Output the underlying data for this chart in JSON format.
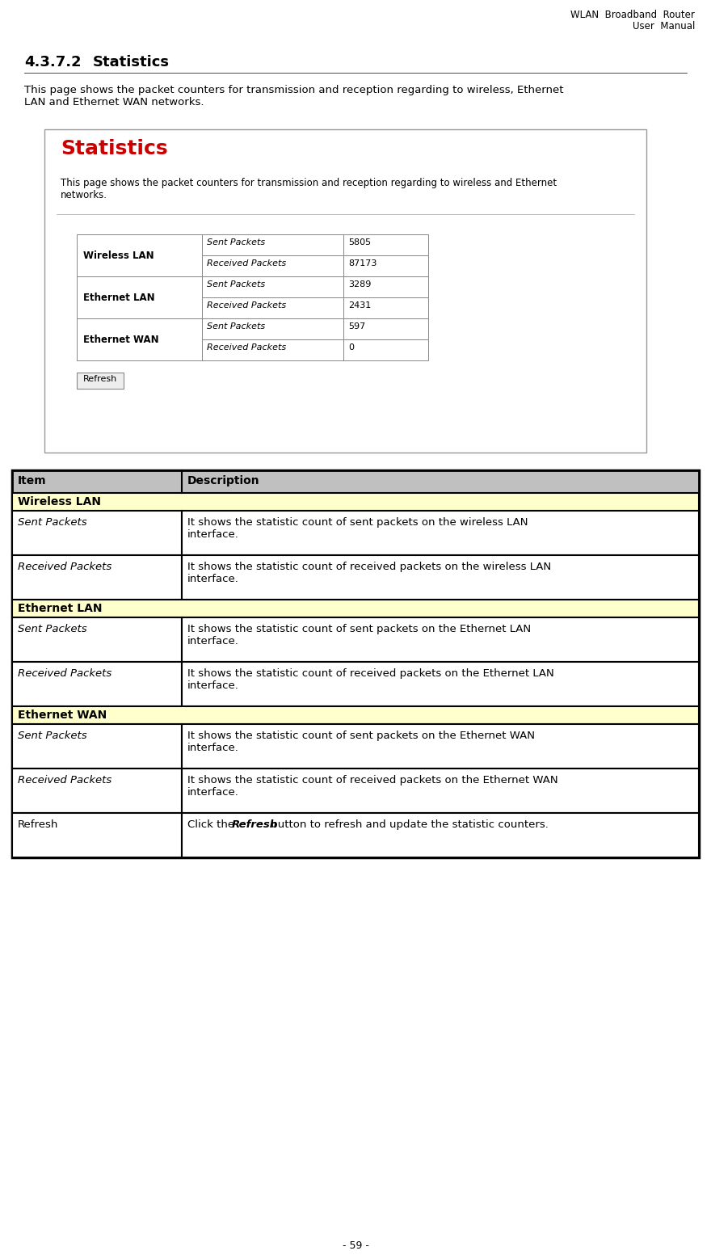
{
  "page_title_right": "WLAN  Broadband  Router\n             User  Manual",
  "section_number": "4.3.7.2",
  "section_title": "Statistics",
  "intro_text": "This page shows the packet counters for transmission and reception regarding to wireless, Ethernet\nLAN and Ethernet WAN networks.",
  "screenshot_title": "Statistics",
  "screenshot_title_color": "#cc0000",
  "screenshot_desc": "This page shows the packet counters for transmission and reception regarding to wireless and Ethernet\nnetworks.",
  "screenshot_table": [
    {
      "group": "Wireless LAN",
      "item": "Sent Packets",
      "value": "5805"
    },
    {
      "group": "",
      "item": "Received Packets",
      "value": "87173"
    },
    {
      "group": "Ethernet LAN",
      "item": "Sent Packets",
      "value": "3289"
    },
    {
      "group": "",
      "item": "Received Packets",
      "value": "2431"
    },
    {
      "group": "Ethernet WAN",
      "item": "Sent Packets",
      "value": "597"
    },
    {
      "group": "",
      "item": "Received Packets",
      "value": "0"
    }
  ],
  "ref_table_header": [
    "Item",
    "Description"
  ],
  "ref_table_header_bg": "#c0c0c0",
  "section_rows": [
    {
      "type": "section",
      "label": "Wireless LAN",
      "bg": "#ffffcc"
    },
    {
      "type": "data",
      "item": "Sent Packets",
      "desc": "It shows the statistic count of sent packets on the wireless LAN\ninterface."
    },
    {
      "type": "data",
      "item": "Received Packets",
      "desc": "It shows the statistic count of received packets on the wireless LAN\ninterface."
    },
    {
      "type": "section",
      "label": "Ethernet LAN",
      "bg": "#ffffcc"
    },
    {
      "type": "data",
      "item": "Sent Packets",
      "desc": "It shows the statistic count of sent packets on the Ethernet LAN\ninterface."
    },
    {
      "type": "data",
      "item": "Received Packets",
      "desc": "It shows the statistic count of received packets on the Ethernet LAN\ninterface."
    },
    {
      "type": "section",
      "label": "Ethernet WAN",
      "bg": "#ffffcc"
    },
    {
      "type": "data",
      "item": "Sent Packets",
      "desc": "It shows the statistic count of sent packets on the Ethernet WAN\ninterface."
    },
    {
      "type": "data",
      "item": "Received Packets",
      "desc": "It shows the statistic count of received packets on the Ethernet WAN\ninterface."
    },
    {
      "type": "data_refresh",
      "item": "Refresh",
      "desc_pre": "Click the ",
      "desc_bold": "Refresh",
      "desc_post": " button to refresh and update the statistic counters."
    }
  ],
  "footer_text": "- 59 -",
  "bg_color": "#ffffff"
}
